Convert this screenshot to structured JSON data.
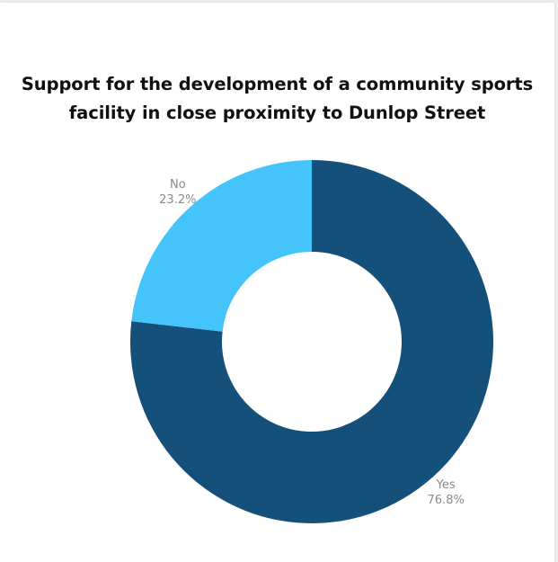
{
  "chart_data": {
    "type": "pie",
    "title_lines": [
      "Support for the development of a community sports",
      "facility in close proximity to Dunlop Street"
    ],
    "slices": [
      {
        "label": "Yes",
        "value": 76.8,
        "display": "76.8%",
        "color": "#14507a"
      },
      {
        "label": "No",
        "value": 23.2,
        "display": "23.2%",
        "color": "#45c4fc"
      }
    ],
    "donut": true
  }
}
